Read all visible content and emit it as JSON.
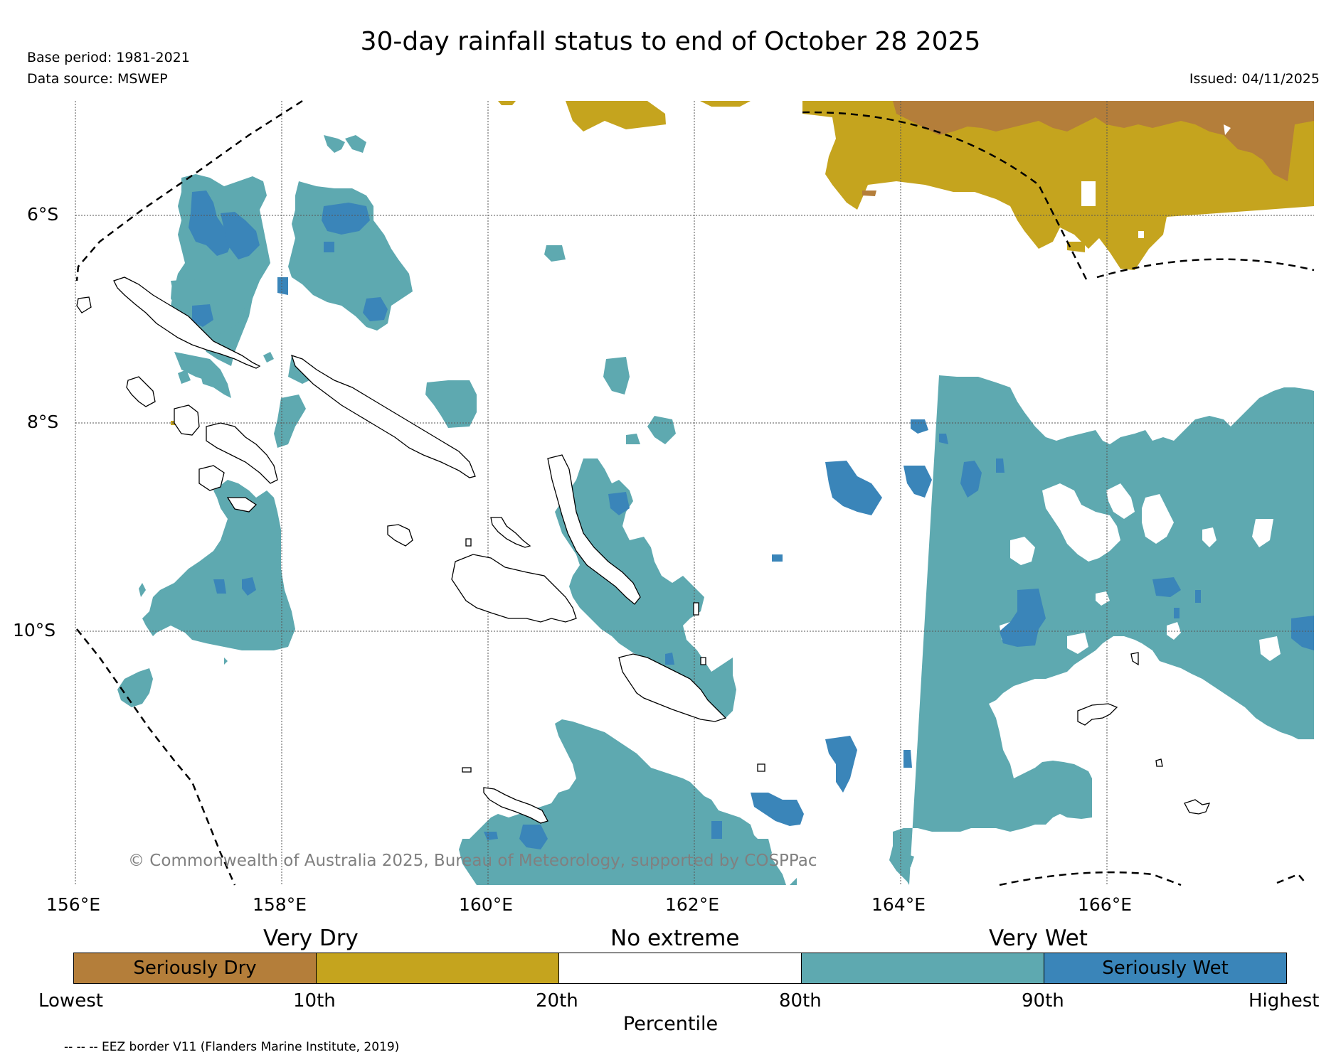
{
  "title": "30-day rainfall status to end of October 28 2025",
  "base_period": "Base period: 1981-2021",
  "data_source": "Data source: MSWEP",
  "issued": "Issued: 04/11/2025",
  "map": {
    "longitude_labels": [
      "156°E",
      "158°E",
      "160°E",
      "162°E",
      "164°E",
      "166°E"
    ],
    "latitude_labels": [
      "6°S",
      "8°S",
      "10°S"
    ],
    "copyright": "© Commonwealth of Australia 2025, Bureau of Meteorology, supported by COSPPac"
  },
  "legend": {
    "band_labels": [
      "Very Dry",
      "No extreme",
      "Very Wet"
    ],
    "segments": [
      {
        "label": "Seriously Dry",
        "color": "#b47e3a"
      },
      {
        "label": "",
        "color": "#c5a41e"
      },
      {
        "label": "",
        "color": "#ffffff"
      },
      {
        "label": "",
        "color": "#5ea9b0"
      },
      {
        "label": "Seriously Wet",
        "color": "#3a85b9"
      }
    ],
    "ticks": [
      "Lowest",
      "10th",
      "20th",
      "80th",
      "90th",
      "Highest"
    ],
    "axis_label": "Percentile"
  },
  "eez_note": "-- -- -- EEZ border V11 (Flanders Marine Institute, 2019)",
  "colors": {
    "seriously_dry": "#b47e3a",
    "very_dry": "#c5a41e",
    "very_wet": "#5ea9b0",
    "seriously_wet": "#3a85b9"
  }
}
